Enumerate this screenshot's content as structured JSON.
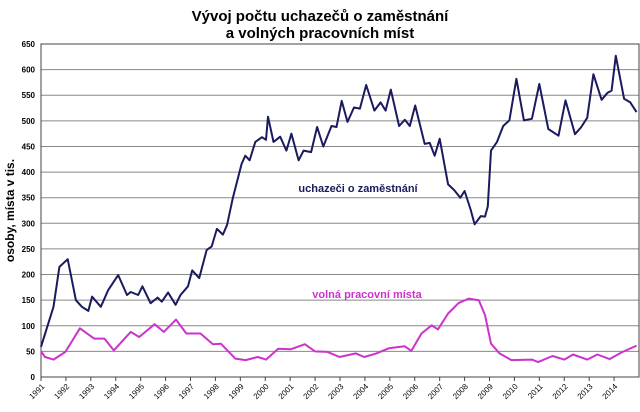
{
  "chart_data": {
    "type": "line",
    "title": [
      "Vývoj počtu uchazečů o zaměstnání",
      "a volných pracovních míst"
    ],
    "ylabel": "osoby, místa v tis.",
    "xlabel": "",
    "ylim": [
      0,
      650
    ],
    "yticks": [
      0,
      50,
      100,
      150,
      200,
      250,
      300,
      350,
      400,
      450,
      500,
      550,
      600,
      650
    ],
    "xlim": [
      1991,
      2015
    ],
    "xticks": [
      "1991",
      "1992",
      "1993",
      "1994",
      "1995",
      "1996",
      "1997",
      "1998",
      "1999",
      "2000",
      "2001",
      "2002",
      "2003",
      "2004",
      "2005",
      "2006",
      "2007",
      "2008",
      "2009",
      "2010",
      "2011",
      "2012",
      "2013",
      "2014"
    ],
    "grid": true,
    "legend": "none",
    "series": [
      {
        "name": "uchazeči o zaměstnání",
        "color": "#1a1a5e",
        "points": [
          [
            1991.0,
            59
          ],
          [
            1991.5,
            137
          ],
          [
            1991.74,
            215
          ],
          [
            1992.07,
            230
          ],
          [
            1992.4,
            150
          ],
          [
            1992.64,
            137
          ],
          [
            1992.9,
            129
          ],
          [
            1993.05,
            157
          ],
          [
            1993.4,
            137
          ],
          [
            1993.7,
            170
          ],
          [
            1994.1,
            199
          ],
          [
            1994.45,
            160
          ],
          [
            1994.6,
            166
          ],
          [
            1994.9,
            160
          ],
          [
            1995.07,
            177
          ],
          [
            1995.4,
            144
          ],
          [
            1995.68,
            155
          ],
          [
            1995.85,
            147
          ],
          [
            1996.1,
            165
          ],
          [
            1996.4,
            141
          ],
          [
            1996.6,
            160
          ],
          [
            1996.9,
            177
          ],
          [
            1997.07,
            208
          ],
          [
            1997.35,
            193
          ],
          [
            1997.65,
            248
          ],
          [
            1997.85,
            255
          ],
          [
            1998.06,
            289
          ],
          [
            1998.3,
            278
          ],
          [
            1998.47,
            297
          ],
          [
            1998.7,
            350
          ],
          [
            1999.05,
            416
          ],
          [
            1999.2,
            432
          ],
          [
            1999.37,
            423
          ],
          [
            1999.6,
            459
          ],
          [
            1999.87,
            468
          ],
          [
            2000.03,
            463
          ],
          [
            2000.11,
            508
          ],
          [
            2000.33,
            459
          ],
          [
            2000.6,
            469
          ],
          [
            2000.85,
            442
          ],
          [
            2001.05,
            475
          ],
          [
            2001.34,
            423
          ],
          [
            2001.54,
            442
          ],
          [
            2001.84,
            439
          ],
          [
            2002.08,
            488
          ],
          [
            2002.33,
            450
          ],
          [
            2002.66,
            490
          ],
          [
            2002.86,
            488
          ],
          [
            2003.07,
            539
          ],
          [
            2003.3,
            498
          ],
          [
            2003.56,
            526
          ],
          [
            2003.8,
            524
          ],
          [
            2004.05,
            570
          ],
          [
            2004.38,
            520
          ],
          [
            2004.63,
            536
          ],
          [
            2004.83,
            520
          ],
          [
            2005.04,
            561
          ],
          [
            2005.37,
            490
          ],
          [
            2005.6,
            502
          ],
          [
            2005.8,
            490
          ],
          [
            2006.02,
            530
          ],
          [
            2006.4,
            455
          ],
          [
            2006.6,
            457
          ],
          [
            2006.8,
            432
          ],
          [
            2007.0,
            465
          ],
          [
            2007.34,
            376
          ],
          [
            2007.58,
            365
          ],
          [
            2007.83,
            350
          ],
          [
            2008.0,
            363
          ],
          [
            2008.24,
            327
          ],
          [
            2008.4,
            298
          ],
          [
            2008.65,
            314
          ],
          [
            2008.82,
            313
          ],
          [
            2008.93,
            333
          ],
          [
            2009.06,
            442
          ],
          [
            2009.3,
            459
          ],
          [
            2009.55,
            490
          ],
          [
            2009.8,
            501
          ],
          [
            2010.08,
            582
          ],
          [
            2010.38,
            501
          ],
          [
            2010.7,
            504
          ],
          [
            2011.0,
            572
          ],
          [
            2011.36,
            484
          ],
          [
            2011.77,
            471
          ],
          [
            2012.05,
            540
          ],
          [
            2012.43,
            474
          ],
          [
            2012.67,
            487
          ],
          [
            2012.92,
            506
          ],
          [
            2013.17,
            591
          ],
          [
            2013.5,
            541
          ],
          [
            2013.74,
            555
          ],
          [
            2013.9,
            559
          ],
          [
            2014.07,
            627
          ],
          [
            2014.4,
            543
          ],
          [
            2014.65,
            536
          ],
          [
            2014.9,
            517
          ]
        ]
      },
      {
        "name": "volná pracovní místa",
        "color": "#cc33cc",
        "points": [
          [
            1991.0,
            50
          ],
          [
            1991.16,
            39
          ],
          [
            1991.5,
            34
          ],
          [
            1991.98,
            49
          ],
          [
            1992.56,
            95
          ],
          [
            1993.13,
            75
          ],
          [
            1993.55,
            75
          ],
          [
            1993.92,
            52
          ],
          [
            1994.6,
            88
          ],
          [
            1994.94,
            78
          ],
          [
            1995.56,
            103
          ],
          [
            1995.93,
            88
          ],
          [
            1996.42,
            112
          ],
          [
            1996.83,
            85
          ],
          [
            1997.4,
            85
          ],
          [
            1997.9,
            64
          ],
          [
            1998.22,
            65
          ],
          [
            1998.8,
            36
          ],
          [
            1999.21,
            33
          ],
          [
            1999.7,
            39
          ],
          [
            2000.03,
            34
          ],
          [
            2000.52,
            55
          ],
          [
            2001.02,
            54
          ],
          [
            2001.59,
            64
          ],
          [
            2002.0,
            50
          ],
          [
            2002.5,
            49
          ],
          [
            2002.98,
            39
          ],
          [
            2003.64,
            46
          ],
          [
            2003.97,
            39
          ],
          [
            2004.46,
            46
          ],
          [
            2004.96,
            56
          ],
          [
            2005.6,
            60
          ],
          [
            2005.86,
            51
          ],
          [
            2006.27,
            85
          ],
          [
            2006.68,
            101
          ],
          [
            2006.93,
            93
          ],
          [
            2007.34,
            124
          ],
          [
            2007.75,
            144
          ],
          [
            2008.16,
            153
          ],
          [
            2008.57,
            150
          ],
          [
            2008.82,
            121
          ],
          [
            2009.06,
            65
          ],
          [
            2009.4,
            46
          ],
          [
            2009.88,
            33
          ],
          [
            2010.7,
            34
          ],
          [
            2010.95,
            29
          ],
          [
            2011.53,
            41
          ],
          [
            2012.0,
            34
          ],
          [
            2012.35,
            44
          ],
          [
            2012.92,
            34
          ],
          [
            2013.33,
            44
          ],
          [
            2013.82,
            35
          ],
          [
            2014.3,
            48
          ],
          [
            2014.9,
            61
          ]
        ]
      }
    ]
  }
}
